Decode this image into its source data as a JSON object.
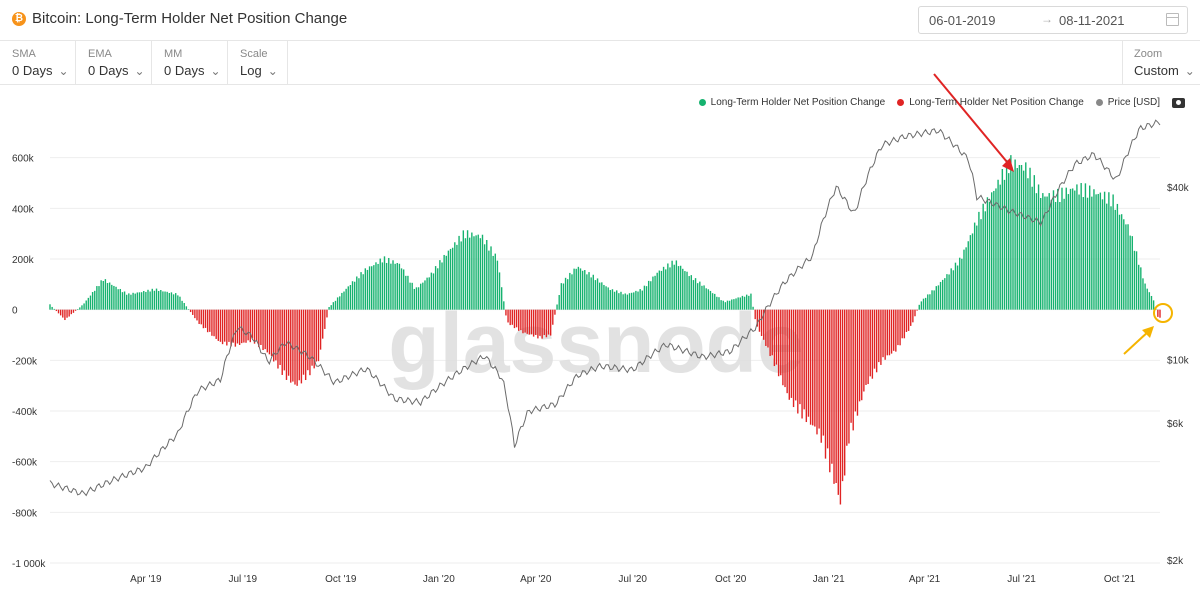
{
  "header": {
    "title": "Bitcoin: Long-Term Holder Net Position Change",
    "icon": "bitcoin-icon",
    "date_from": "06-01-2019",
    "date_to": "08-11-2021",
    "arrow": "→"
  },
  "controls": {
    "sma": {
      "label": "SMA",
      "value": "0 Days"
    },
    "ema": {
      "label": "EMA",
      "value": "0 Days"
    },
    "mm": {
      "label": "MM",
      "value": "0 Days"
    },
    "scale": {
      "label": "Scale",
      "value": "Log"
    },
    "zoom": {
      "label": "Zoom",
      "value": "Custom"
    }
  },
  "legend": [
    {
      "label": "Long-Term Holder Net Position Change",
      "color": "#16b26f"
    },
    {
      "label": "Long-Term Holder Net Position Change",
      "color": "#e02424"
    },
    {
      "label": "Price [USD]",
      "color": "#888888"
    }
  ],
  "watermark": "glassnode",
  "chart_data": {
    "type": "bar",
    "x_ticks": [
      "Apr '19",
      "Jul '19",
      "Oct '19",
      "Jan '20",
      "Apr '20",
      "Jul '20",
      "Oct '20",
      "Jan '21",
      "Apr '21",
      "Jul '21",
      "Oct '21"
    ],
    "y_left_ticks": [
      "600k",
      "400k",
      "200k",
      "0",
      "-200k",
      "-400k",
      "-600k",
      "-800k",
      "-1 000k"
    ],
    "y_left_values": [
      600000,
      400000,
      200000,
      0,
      -200000,
      -400000,
      -600000,
      -800000,
      -1000000
    ],
    "y_right_ticks": [
      "$40k",
      "$10k",
      "$6k",
      "$2k"
    ],
    "y_right_values": [
      40000,
      10000,
      6000,
      2000
    ],
    "y_left_range": [
      -1000000,
      800000
    ],
    "y_right_scale": "log",
    "positive_color": "#16b26f",
    "negative_color": "#e02424",
    "price_color": "#888888",
    "position_change_anchors": [
      [
        "2019-01-01",
        20000
      ],
      [
        "2019-01-15",
        -40000
      ],
      [
        "2019-02-01",
        20000
      ],
      [
        "2019-02-20",
        120000
      ],
      [
        "2019-03-15",
        60000
      ],
      [
        "2019-04-10",
        80000
      ],
      [
        "2019-05-01",
        60000
      ],
      [
        "2019-05-20",
        -50000
      ],
      [
        "2019-06-10",
        -130000
      ],
      [
        "2019-06-25",
        -140000
      ],
      [
        "2019-07-10",
        -120000
      ],
      [
        "2019-07-25",
        -170000
      ],
      [
        "2019-08-10",
        -260000
      ],
      [
        "2019-08-20",
        -300000
      ],
      [
        "2019-09-01",
        -250000
      ],
      [
        "2019-09-10",
        -200000
      ],
      [
        "2019-09-20",
        10000
      ],
      [
        "2019-10-10",
        100000
      ],
      [
        "2019-10-25",
        160000
      ],
      [
        "2019-11-10",
        200000
      ],
      [
        "2019-11-25",
        180000
      ],
      [
        "2019-12-10",
        80000
      ],
      [
        "2019-12-25",
        140000
      ],
      [
        "2020-01-10",
        230000
      ],
      [
        "2020-01-25",
        300000
      ],
      [
        "2020-02-10",
        290000
      ],
      [
        "2020-02-25",
        200000
      ],
      [
        "2020-03-05",
        -50000
      ],
      [
        "2020-03-20",
        -90000
      ],
      [
        "2020-04-05",
        -110000
      ],
      [
        "2020-04-15",
        -100000
      ],
      [
        "2020-04-25",
        100000
      ],
      [
        "2020-05-10",
        170000
      ],
      [
        "2020-05-25",
        130000
      ],
      [
        "2020-06-10",
        80000
      ],
      [
        "2020-06-25",
        60000
      ],
      [
        "2020-07-10",
        80000
      ],
      [
        "2020-07-25",
        150000
      ],
      [
        "2020-08-10",
        190000
      ],
      [
        "2020-08-25",
        130000
      ],
      [
        "2020-09-10",
        80000
      ],
      [
        "2020-09-25",
        30000
      ],
      [
        "2020-10-10",
        50000
      ],
      [
        "2020-10-20",
        60000
      ],
      [
        "2020-10-25",
        -60000
      ],
      [
        "2020-11-10",
        -200000
      ],
      [
        "2020-11-25",
        -350000
      ],
      [
        "2020-12-10",
        -420000
      ],
      [
        "2020-12-25",
        -500000
      ],
      [
        "2021-01-05",
        -650000
      ],
      [
        "2021-01-12",
        -760000
      ],
      [
        "2021-01-20",
        -500000
      ],
      [
        "2021-02-05",
        -300000
      ],
      [
        "2021-02-20",
        -200000
      ],
      [
        "2021-03-05",
        -160000
      ],
      [
        "2021-03-20",
        -60000
      ],
      [
        "2021-03-28",
        30000
      ],
      [
        "2021-04-10",
        80000
      ],
      [
        "2021-04-25",
        150000
      ],
      [
        "2021-05-05",
        200000
      ],
      [
        "2021-05-20",
        350000
      ],
      [
        "2021-06-05",
        470000
      ],
      [
        "2021-06-20",
        580000
      ],
      [
        "2021-07-05",
        560000
      ],
      [
        "2021-07-20",
        450000
      ],
      [
        "2021-08-05",
        450000
      ],
      [
        "2021-08-20",
        480000
      ],
      [
        "2021-09-10",
        460000
      ],
      [
        "2021-09-25",
        430000
      ],
      [
        "2021-10-10",
        320000
      ],
      [
        "2021-10-25",
        100000
      ],
      [
        "2021-11-03",
        30000
      ],
      [
        "2021-11-06",
        -30000
      ]
    ],
    "price_anchors": [
      [
        "2019-01-01",
        3700
      ],
      [
        "2019-02-01",
        3400
      ],
      [
        "2019-03-01",
        3800
      ],
      [
        "2019-04-01",
        4200
      ],
      [
        "2019-05-01",
        5500
      ],
      [
        "2019-05-20",
        7800
      ],
      [
        "2019-06-10",
        8500
      ],
      [
        "2019-06-26",
        13000
      ],
      [
        "2019-07-10",
        12000
      ],
      [
        "2019-07-25",
        9800
      ],
      [
        "2019-08-10",
        11500
      ],
      [
        "2019-09-01",
        10300
      ],
      [
        "2019-09-25",
        8300
      ],
      [
        "2019-10-25",
        9300
      ],
      [
        "2019-11-20",
        7300
      ],
      [
        "2019-12-15",
        7100
      ],
      [
        "2020-01-15",
        8800
      ],
      [
        "2020-02-13",
        10300
      ],
      [
        "2020-03-01",
        8500
      ],
      [
        "2020-03-12",
        5000
      ],
      [
        "2020-03-25",
        6600
      ],
      [
        "2020-04-20",
        7000
      ],
      [
        "2020-05-10",
        8800
      ],
      [
        "2020-06-01",
        9500
      ],
      [
        "2020-07-01",
        9200
      ],
      [
        "2020-08-01",
        11300
      ],
      [
        "2020-09-05",
        10200
      ],
      [
        "2020-10-01",
        10700
      ],
      [
        "2020-10-25",
        13000
      ],
      [
        "2020-11-20",
        18500
      ],
      [
        "2020-12-17",
        23000
      ],
      [
        "2021-01-08",
        40000
      ],
      [
        "2021-01-25",
        32000
      ],
      [
        "2021-02-20",
        56000
      ],
      [
        "2021-03-13",
        60000
      ],
      [
        "2021-04-14",
        63000
      ],
      [
        "2021-05-12",
        50000
      ],
      [
        "2021-05-20",
        37000
      ],
      [
        "2021-06-20",
        33000
      ],
      [
        "2021-07-20",
        30000
      ],
      [
        "2021-08-20",
        48000
      ],
      [
        "2021-09-07",
        52000
      ],
      [
        "2021-09-28",
        42000
      ],
      [
        "2021-10-20",
        64000
      ],
      [
        "2021-11-08",
        67500
      ]
    ]
  }
}
